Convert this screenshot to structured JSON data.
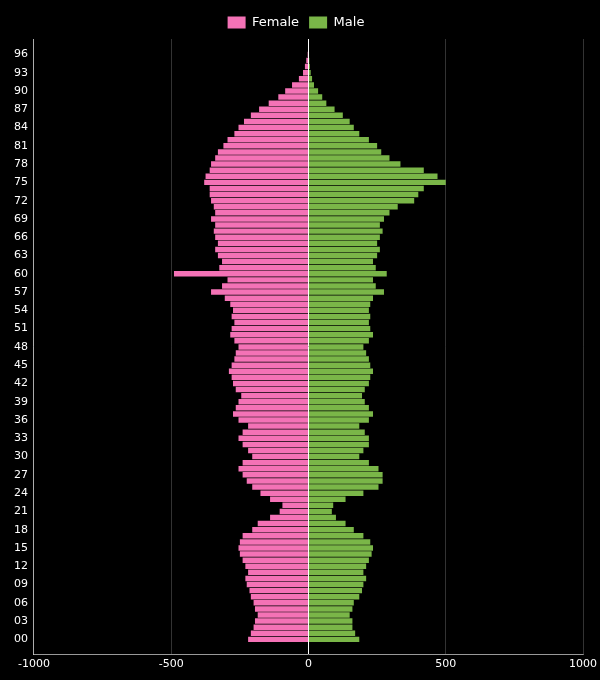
{
  "chart_data": {
    "type": "bar",
    "orientation": "horizontal",
    "categories": [
      0,
      1,
      2,
      3,
      4,
      5,
      6,
      7,
      8,
      9,
      10,
      11,
      12,
      13,
      14,
      15,
      16,
      17,
      18,
      19,
      20,
      21,
      22,
      23,
      24,
      25,
      26,
      27,
      28,
      29,
      30,
      31,
      32,
      33,
      34,
      35,
      36,
      37,
      38,
      39,
      40,
      41,
      42,
      43,
      44,
      45,
      46,
      47,
      48,
      49,
      50,
      51,
      52,
      53,
      54,
      55,
      56,
      57,
      58,
      59,
      60,
      61,
      62,
      63,
      64,
      65,
      66,
      67,
      68,
      69,
      70,
      71,
      72,
      73,
      74,
      75,
      76,
      77,
      78,
      79,
      80,
      81,
      82,
      83,
      84,
      85,
      86,
      87,
      88,
      89,
      90,
      91,
      92,
      93,
      94,
      95,
      96
    ],
    "series": [
      {
        "name": "Female",
        "color": "#f472b6",
        "values": [
          -220,
          -210,
          -200,
          -195,
          -185,
          -195,
          -200,
          -210,
          -215,
          -225,
          -230,
          -220,
          -230,
          -240,
          -250,
          -255,
          -250,
          -240,
          -205,
          -185,
          -140,
          -105,
          -95,
          -140,
          -175,
          -205,
          -225,
          -240,
          -255,
          -240,
          -205,
          -220,
          -240,
          -255,
          -240,
          -220,
          -255,
          -275,
          -265,
          -255,
          -245,
          -265,
          -275,
          -280,
          -290,
          -280,
          -270,
          -265,
          -255,
          -270,
          -285,
          -280,
          -270,
          -280,
          -275,
          -285,
          -305,
          -355,
          -315,
          -295,
          -490,
          -325,
          -315,
          -330,
          -340,
          -330,
          -340,
          -345,
          -340,
          -355,
          -340,
          -345,
          -355,
          -360,
          -360,
          -380,
          -375,
          -360,
          -355,
          -340,
          -330,
          -310,
          -295,
          -270,
          -255,
          -235,
          -210,
          -180,
          -145,
          -110,
          -85,
          -60,
          -35,
          -20,
          -13,
          -8,
          -3
        ]
      },
      {
        "name": "Male",
        "color": "#7ab648",
        "values": [
          185,
          170,
          160,
          160,
          150,
          160,
          165,
          185,
          195,
          200,
          210,
          200,
          210,
          220,
          230,
          235,
          225,
          200,
          165,
          135,
          100,
          85,
          90,
          135,
          200,
          255,
          270,
          270,
          255,
          220,
          185,
          200,
          220,
          220,
          205,
          185,
          220,
          235,
          220,
          205,
          195,
          205,
          220,
          225,
          235,
          225,
          220,
          210,
          200,
          220,
          235,
          225,
          220,
          225,
          220,
          225,
          235,
          275,
          245,
          235,
          285,
          245,
          235,
          250,
          260,
          250,
          260,
          270,
          260,
          275,
          295,
          325,
          385,
          400,
          420,
          500,
          470,
          420,
          335,
          295,
          265,
          250,
          220,
          185,
          165,
          150,
          125,
          95,
          65,
          50,
          35,
          20,
          13,
          8,
          5,
          3,
          2
        ]
      }
    ],
    "xlim": [
      -1000,
      1000
    ],
    "xticks": [
      -1000,
      -500,
      0,
      500,
      1000
    ],
    "ylim": [
      -1,
      97
    ],
    "yticks": [
      {
        "value": 0,
        "label": "00"
      },
      {
        "value": 3,
        "label": "03"
      },
      {
        "value": 6,
        "label": "06"
      },
      {
        "value": 9,
        "label": "09"
      },
      12,
      15,
      18,
      21,
      24,
      27,
      30,
      33,
      36,
      39,
      42,
      45,
      48,
      51,
      54,
      57,
      60,
      63,
      66,
      69,
      72,
      75,
      78,
      81,
      84,
      87,
      90,
      93,
      96
    ],
    "grid": "x",
    "legend": "top"
  }
}
